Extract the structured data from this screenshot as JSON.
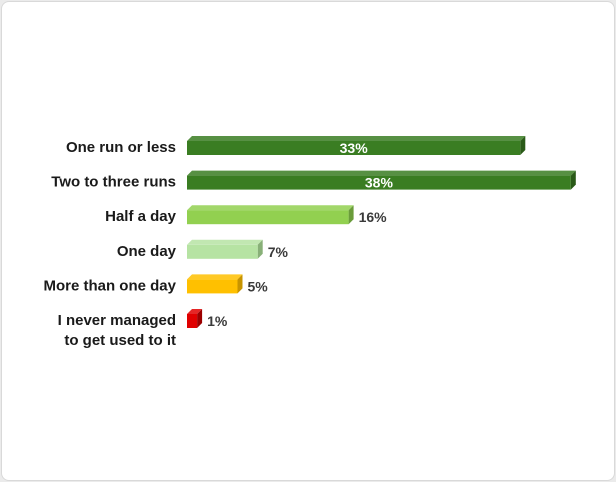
{
  "chart_data": {
    "type": "bar",
    "orientation": "horizontal",
    "categories": [
      "One run or less",
      "Two to three runs",
      "Half a day",
      "One day",
      "More than one day",
      "I never managed to get used to it"
    ],
    "category_lines": [
      [
        "One run or less"
      ],
      [
        "Two to three runs"
      ],
      [
        "Half a day"
      ],
      [
        "One day"
      ],
      [
        "More than one day"
      ],
      [
        "I never managed",
        "to get used to it"
      ]
    ],
    "values": [
      33,
      38,
      16,
      7,
      5,
      1
    ],
    "value_labels": [
      "33%",
      "38%",
      "16%",
      "7%",
      "5%",
      "1%"
    ],
    "unit": "%",
    "colors": [
      "#3a7d22",
      "#3a7d22",
      "#92d050",
      "#b6e3a3",
      "#ffc000",
      "#e00000"
    ],
    "side_colors": [
      "#2a5a18",
      "#2a5a18",
      "#6a9c3a",
      "#88b078",
      "#c79400",
      "#9c0000"
    ],
    "label_inside": [
      true,
      true,
      false,
      false,
      false,
      false
    ],
    "title": "",
    "xlabel": "",
    "ylabel": "",
    "grid": false,
    "legend": "none"
  }
}
